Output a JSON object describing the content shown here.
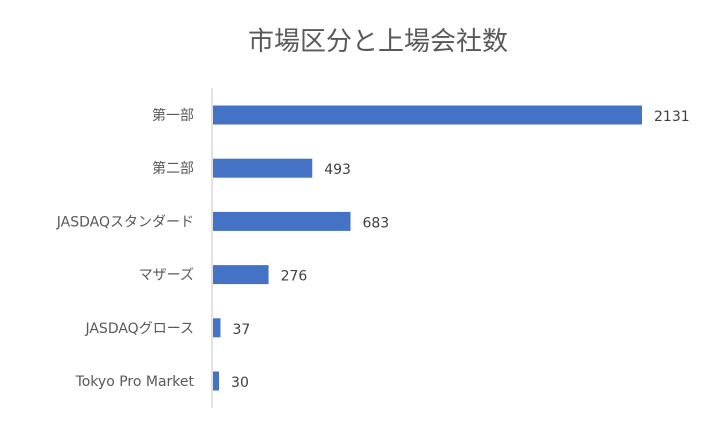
{
  "chart_data": {
    "type": "bar",
    "orientation": "horizontal",
    "title": "市場区分と上場会社数",
    "categories": [
      "第一部",
      "第二部",
      "JASDAQスタンダード",
      "マザーズ",
      "JASDAQグロース",
      "Tokyo Pro Market"
    ],
    "values": [
      2131,
      493,
      683,
      276,
      37,
      30
    ],
    "value_labels": [
      "2131",
      "493",
      "683",
      "276",
      "37",
      "30"
    ],
    "xlim": [
      0,
      2131
    ],
    "grid": false,
    "legend": "none",
    "bar_color": "#4472C4",
    "axis_color": "#D9D9D9"
  }
}
